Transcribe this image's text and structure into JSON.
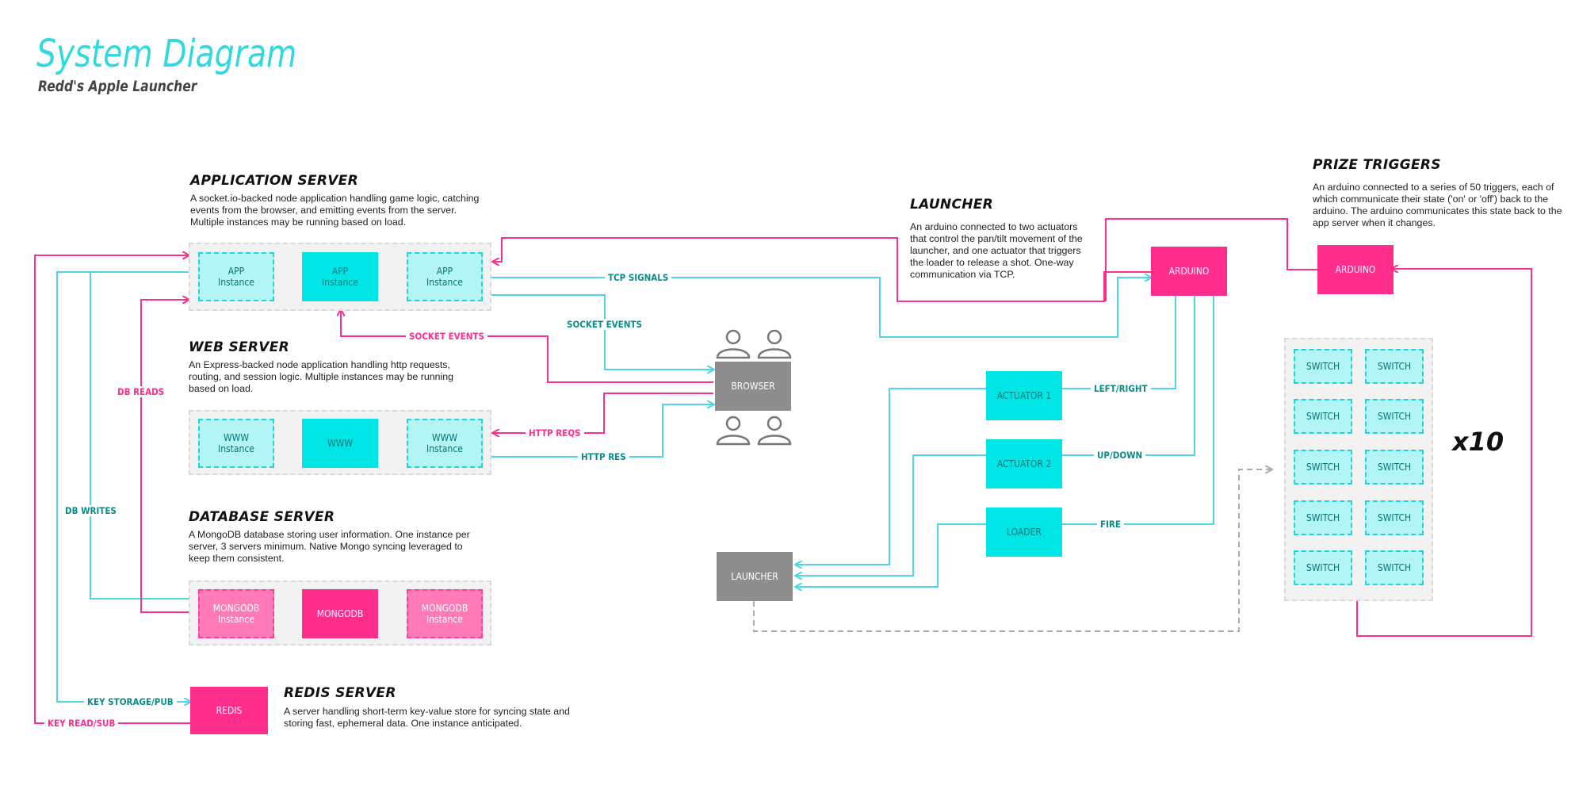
{
  "header": {
    "title": "System Diagram",
    "subtitle": "Redd's Apple Launcher"
  },
  "colors": {
    "cyan": "#00e6e6",
    "cyan_light": "#b3f4f4",
    "pink": "#ff2d8c",
    "pink_light": "#ff7ab6",
    "gray": "#8e8e8e",
    "edge_cyan": "#4fd6e6",
    "edge_pink": "#ff2d8c"
  },
  "sections": {
    "app": {
      "title": "APPLICATION SERVER",
      "desc": "A socket.io-backed node application handling game logic, catching events from the browser, and emitting events from the server.  Multiple instances may be running based on load."
    },
    "web": {
      "title": "WEB SERVER",
      "desc": "An Express-backed node application handling http requests, routing, and session logic.  Multiple instances may be running based on load."
    },
    "db": {
      "title": "DATABASE SERVER",
      "desc": "A MongoDB database storing user information.  One instance per server, 3 servers minimum.  Native Mongo syncing leveraged to keep them consistent."
    },
    "redis": {
      "title": "REDIS SERVER",
      "desc": "A server handling short-term key-value store for syncing state and storing fast, ephemeral data.  One instance anticipated."
    },
    "launcher": {
      "title": "LAUNCHER",
      "desc": "An arduino connected to two actuators that control the pan/tilt movement of the launcher, and one actuator that triggers the loader to release a shot. One-way communication via TCP."
    },
    "prize": {
      "title": "PRIZE TRIGGERS",
      "desc": "An arduino connected to a series of 50 triggers, each of which communicate their state ('on' or 'off') back to the arduino.  The arduino communicates this state back to the app server when it changes."
    }
  },
  "nodes": {
    "app1": "APP\nInstance",
    "app2": "APP\nInstance",
    "app3": "APP\nInstance",
    "www1": "WWW\nInstance",
    "www2": "WWW",
    "www3": "WWW\nInstance",
    "mongo1": "MONGODB\nInstance",
    "mongo2": "MONGODB",
    "mongo3": "MONGODB\nInstance",
    "redis": "REDIS",
    "browser": "BROWSER",
    "arduino_launcher": "ARDUINO",
    "arduino_prize": "ARDUINO",
    "actuator1": "ACTUATOR 1",
    "actuator2": "ACTUATOR 2",
    "loader": "LOADER",
    "launcher": "LAUNCHER",
    "switches": [
      "SWITCH",
      "SWITCH",
      "SWITCH",
      "SWITCH",
      "SWITCH",
      "SWITCH",
      "SWITCH",
      "SWITCH",
      "SWITCH",
      "SWITCH"
    ]
  },
  "multiplier": "x10",
  "edges": {
    "tcp_signals": "TCP SIGNALS",
    "socket_events_pink": "SOCKET EVENTS",
    "socket_events_cyan": "SOCKET EVENTS",
    "db_reads": "DB READS",
    "db_writes": "DB WRITES",
    "http_reqs": "HTTP REQS",
    "http_res": "HTTP RES",
    "left_right": "LEFT/RIGHT",
    "up_down": "UP/DOWN",
    "fire": "FIRE",
    "key_storage": "KEY STORAGE/PUB",
    "key_read": "KEY READ/SUB"
  }
}
